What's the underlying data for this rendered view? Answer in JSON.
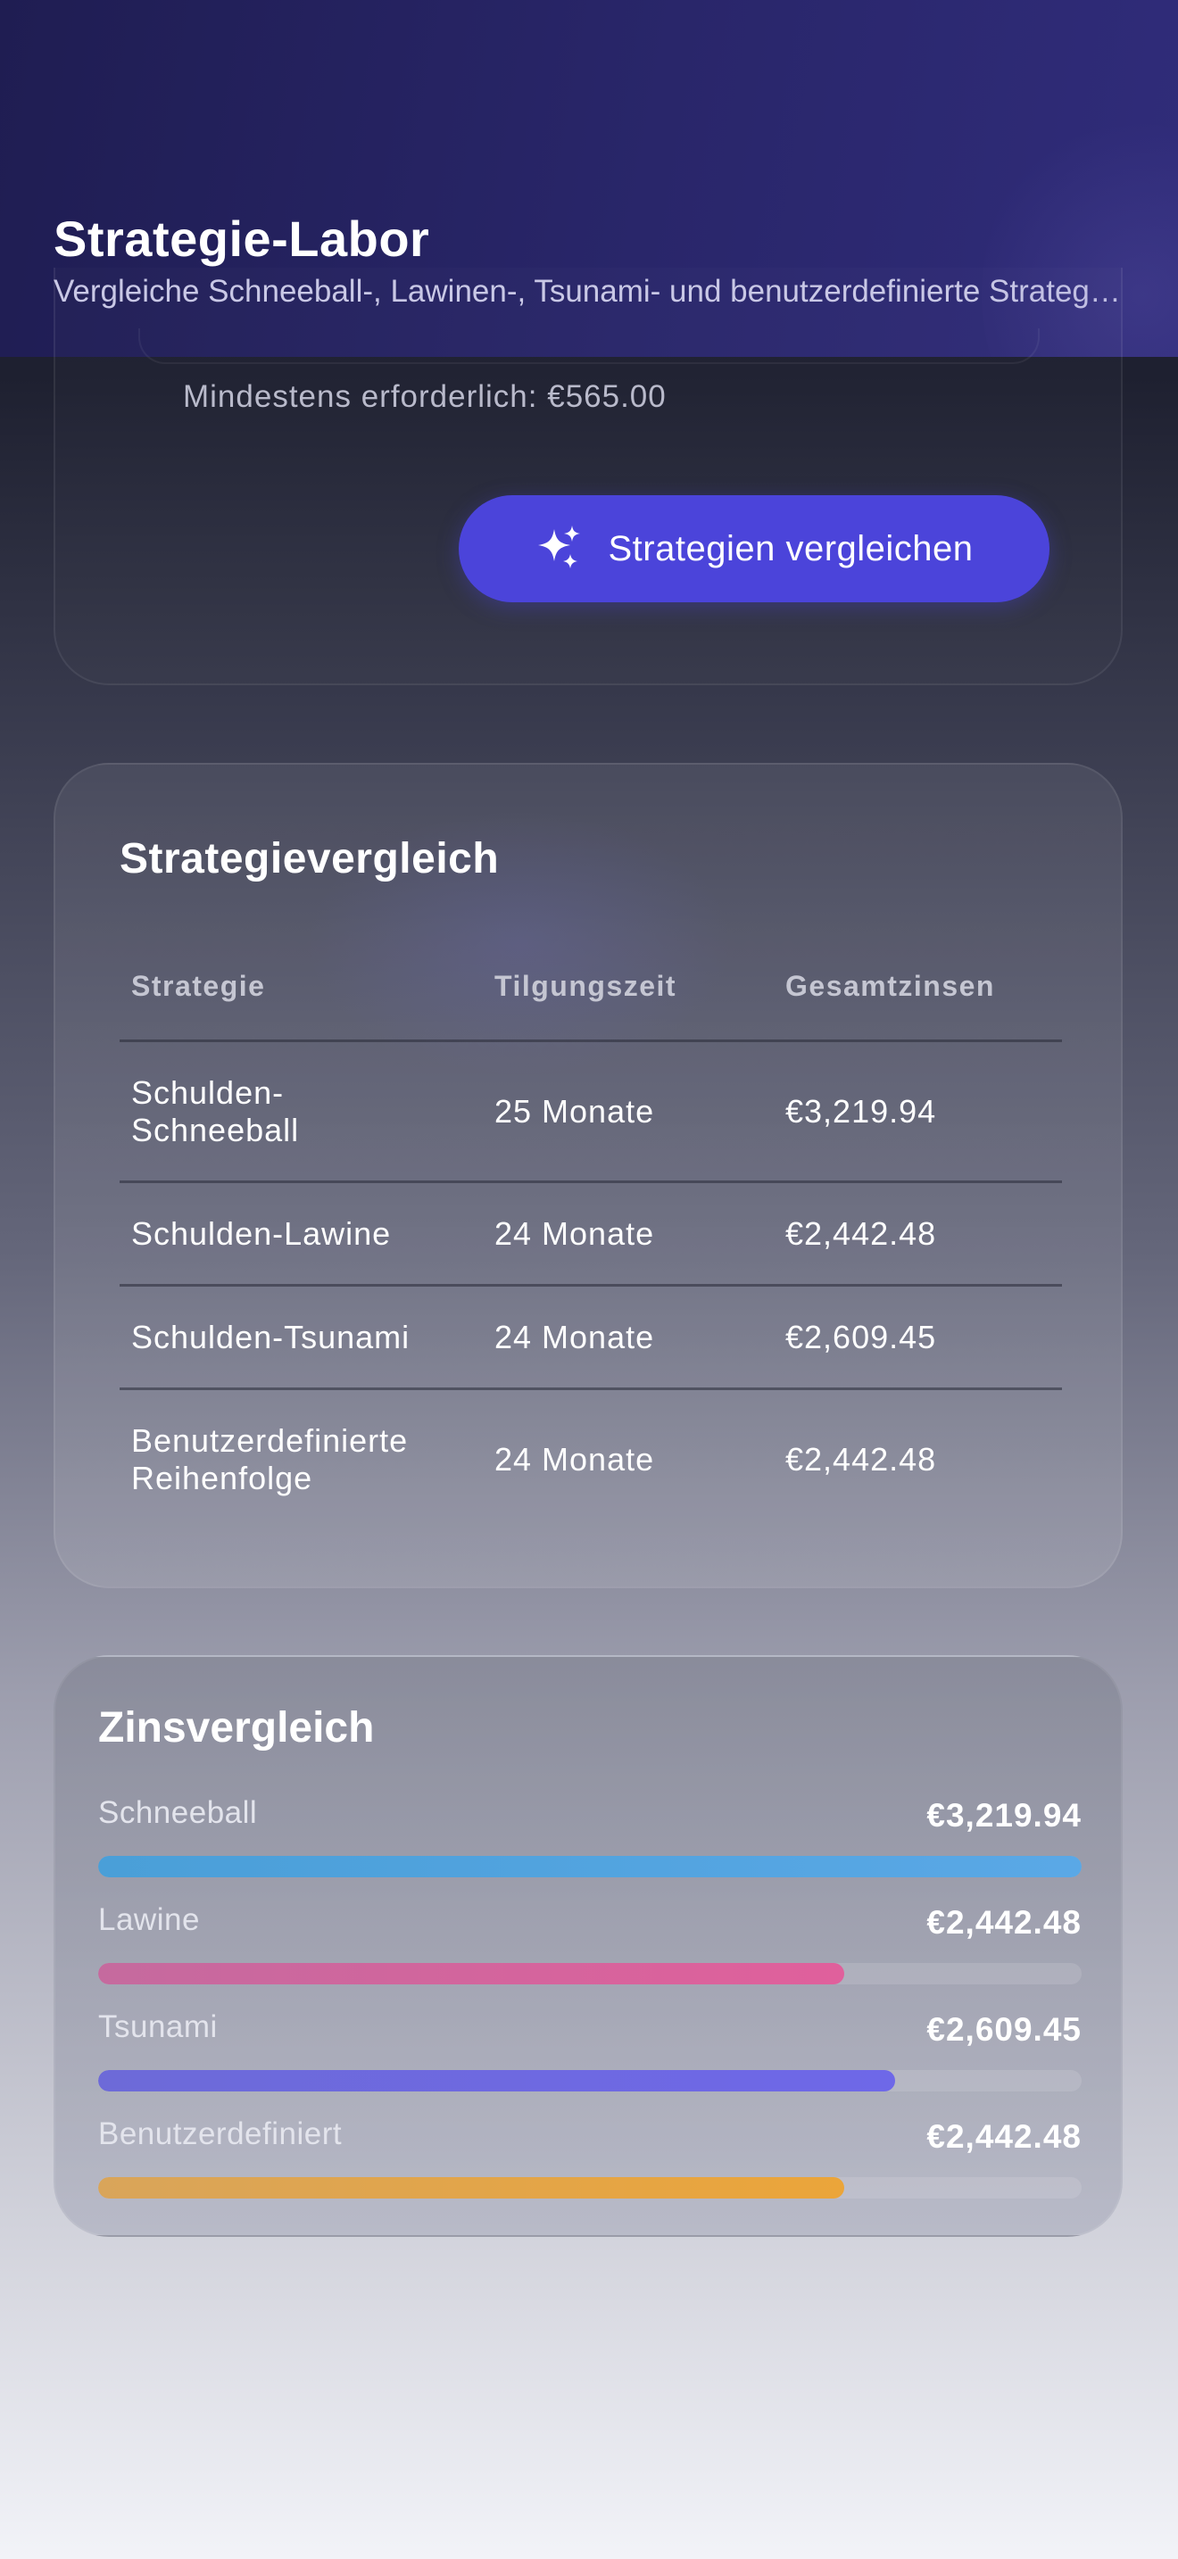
{
  "header": {
    "title": "Strategie-Labor",
    "subtitle": "Vergleiche Schneeball-, Lawinen-, Tsunami- und benutzerdefinierte Strategien"
  },
  "setup": {
    "min_required": "Mindestens erforderlich: €565.00",
    "compare_button_label": "Strategien vergleichen",
    "compare_button_icon": "sparkles-icon"
  },
  "strategy_comparison": {
    "title": "Strategievergleich",
    "columns": [
      "Strategie",
      "Tilgungszeit",
      "Gesamtzinsen"
    ],
    "rows": [
      {
        "strategy": "Schulden-Schneeball",
        "payoff_time": "25 Monate",
        "total_interest": "€3,219.94"
      },
      {
        "strategy": "Schulden-Lawine",
        "payoff_time": "24 Monate",
        "total_interest": "€2,442.48"
      },
      {
        "strategy": "Schulden-Tsunami",
        "payoff_time": "24 Monate",
        "total_interest": "€2,609.45"
      },
      {
        "strategy": "Benutzerdefinierte Reihenfolge",
        "payoff_time": "24 Monate",
        "total_interest": "€2,442.48"
      }
    ]
  },
  "interest_comparison": {
    "title": "Zinsvergleich",
    "items": [
      {
        "label": "Schneeball",
        "value_text": "€3,219.94",
        "amount": 3219.94,
        "color_start": "#4a9fd8",
        "color_end": "#5aa8e6"
      },
      {
        "label": "Lawine",
        "value_text": "€2,442.48",
        "amount": 2442.48,
        "color_start": "#c56a9e",
        "color_end": "#e0609c"
      },
      {
        "label": "Tsunami",
        "value_text": "€2,609.45",
        "amount": 2609.45,
        "color_start": "#6d6ad8",
        "color_end": "#6e68e8"
      },
      {
        "label": "Benutzerdefiniert",
        "value_text": "€2,442.48",
        "amount": 2442.48,
        "color_start": "#d9a55a",
        "color_end": "#eba53a"
      }
    ]
  },
  "colors": {
    "accent": "#4b44da",
    "header_bg": "#29266a"
  }
}
